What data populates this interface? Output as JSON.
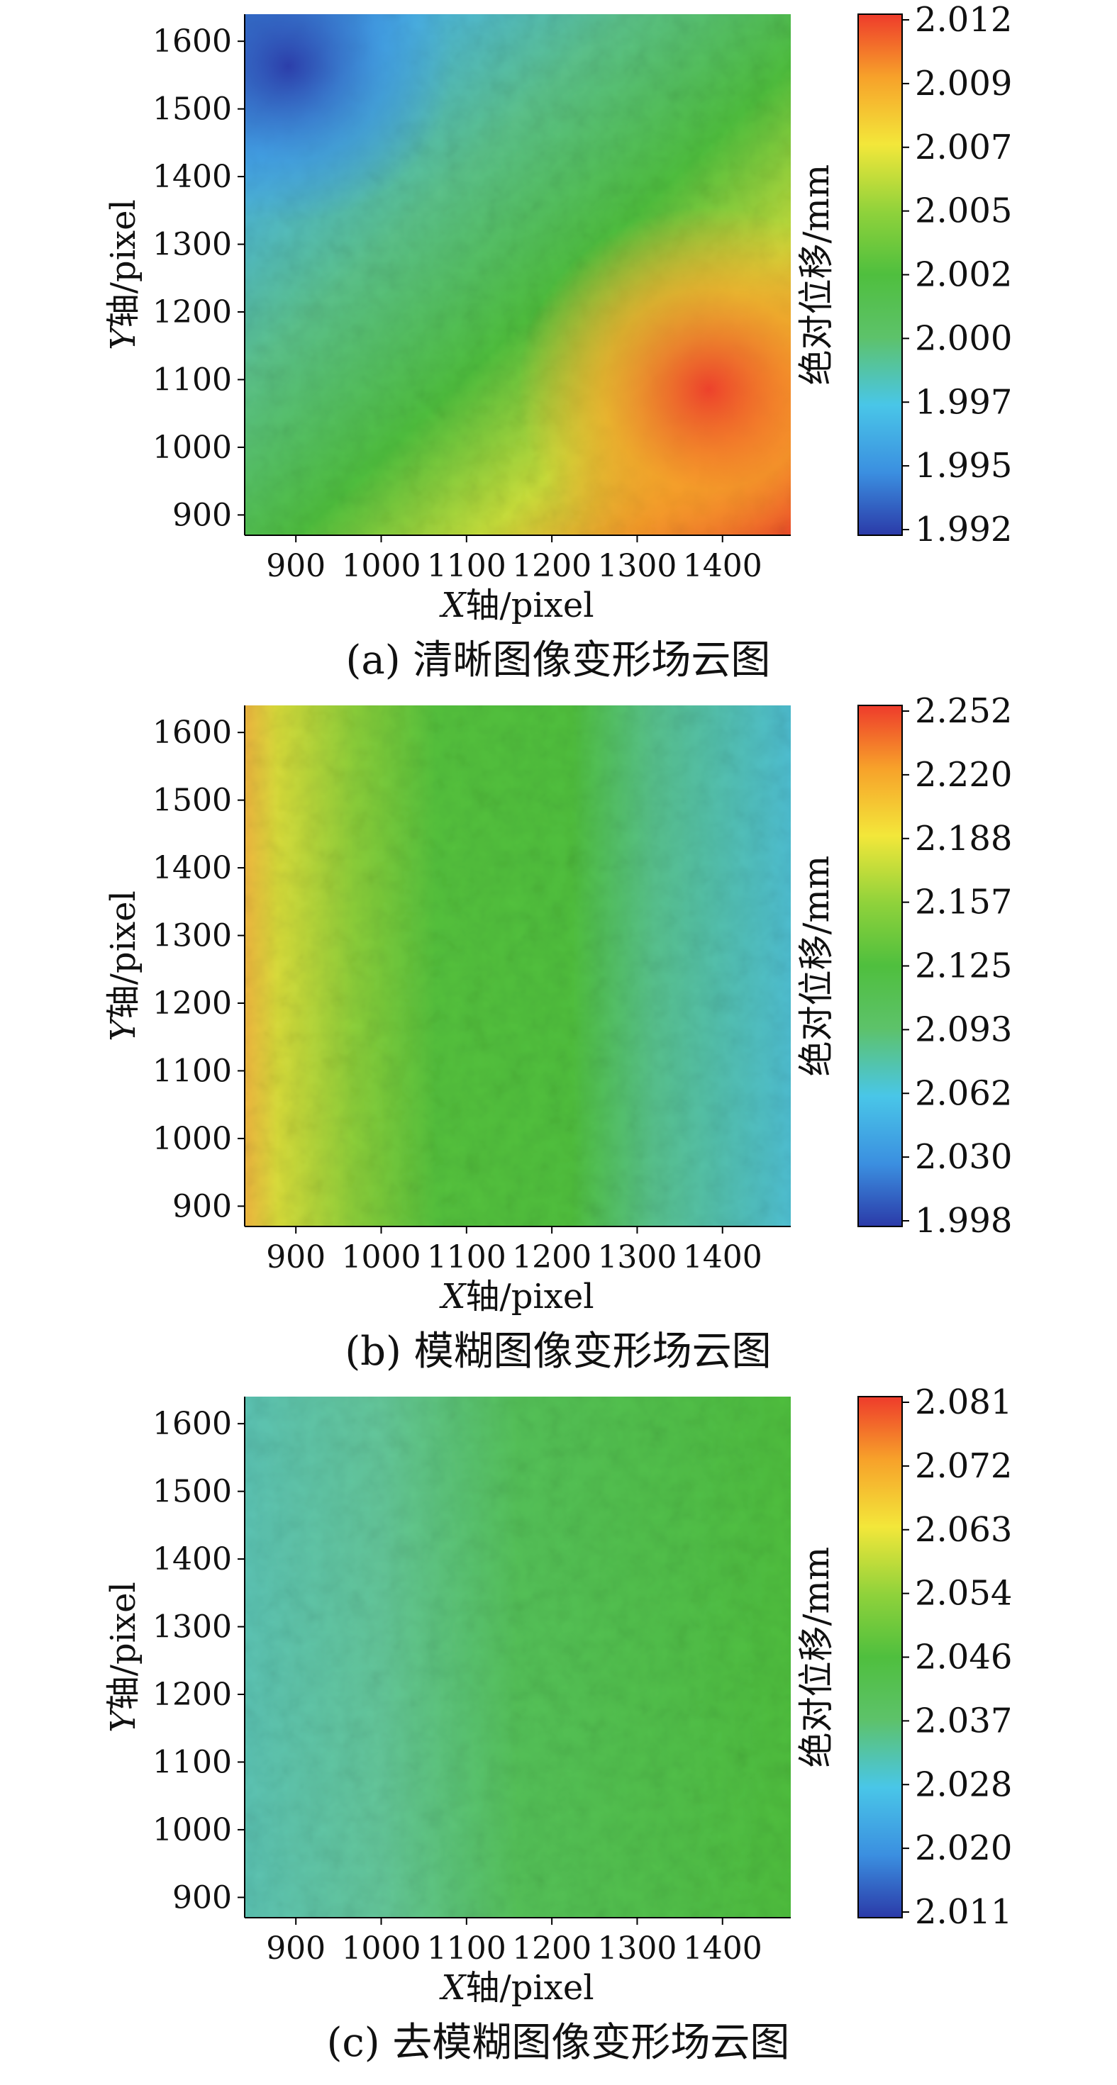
{
  "colormap": [
    "#2b3aa8",
    "#3b8fe0",
    "#49c6e8",
    "#5dc26a",
    "#4fbf3e",
    "#c6df3b",
    "#f3e73a",
    "#f7a12a",
    "#ee3b2b"
  ],
  "chart_data": [
    {
      "type": "heatmap",
      "caption": "(a) 清晰图像变形场云图",
      "xlabel_italic": "X",
      "xlabel_rest": "轴/pixel",
      "ylabel_italic": "Y",
      "ylabel_rest": "轴/pixel",
      "x_ticks": [
        "900",
        "1000",
        "1100",
        "1200",
        "1300",
        "1400"
      ],
      "y_ticks": [
        "900",
        "1000",
        "1100",
        "1200",
        "1300",
        "1400",
        "1500",
        "1600"
      ],
      "xlim": [
        840,
        1480
      ],
      "ylim": [
        870,
        1640
      ],
      "colorbar_label": "绝对位移/mm",
      "colorbar_ticks": [
        "2.012",
        "2.009",
        "2.007",
        "2.005",
        "2.002",
        "2.000",
        "1.997",
        "1.995",
        "1.992"
      ],
      "value_range": [
        1.992,
        2.012
      ],
      "field_summary": "blue low at upper-left, green mid, red-orange high at lower-right"
    },
    {
      "type": "heatmap",
      "caption": "(b) 模糊图像变形场云图",
      "xlabel_italic": "X",
      "xlabel_rest": "轴/pixel",
      "ylabel_italic": "Y",
      "ylabel_rest": "轴/pixel",
      "x_ticks": [
        "900",
        "1000",
        "1100",
        "1200",
        "1300",
        "1400"
      ],
      "y_ticks": [
        "900",
        "1000",
        "1100",
        "1200",
        "1300",
        "1400",
        "1500",
        "1600"
      ],
      "xlim": [
        840,
        1480
      ],
      "ylim": [
        870,
        1640
      ],
      "colorbar_label": "绝对位移/mm",
      "colorbar_ticks": [
        "2.252",
        "2.220",
        "2.188",
        "2.157",
        "2.125",
        "2.093",
        "2.062",
        "2.030",
        "1.998"
      ],
      "value_range": [
        1.998,
        2.252
      ],
      "field_summary": "yellow-orange at left edge, green center, cyan-blue toward right"
    },
    {
      "type": "heatmap",
      "caption": "(c) 去模糊图像变形场云图",
      "xlabel_italic": "X",
      "xlabel_rest": "轴/pixel",
      "ylabel_italic": "Y",
      "ylabel_rest": "轴/pixel",
      "x_ticks": [
        "900",
        "1000",
        "1100",
        "1200",
        "1300",
        "1400"
      ],
      "y_ticks": [
        "900",
        "1000",
        "1100",
        "1200",
        "1300",
        "1400",
        "1500",
        "1600"
      ],
      "xlim": [
        840,
        1480
      ],
      "ylim": [
        870,
        1640
      ],
      "colorbar_label": "绝对位移/mm",
      "colorbar_ticks": [
        "2.081",
        "2.072",
        "2.063",
        "2.054",
        "2.046",
        "2.037",
        "2.028",
        "2.020",
        "2.011"
      ],
      "value_range": [
        2.011,
        2.081
      ],
      "field_summary": "mostly green with light cyan patches on the left side"
    }
  ]
}
